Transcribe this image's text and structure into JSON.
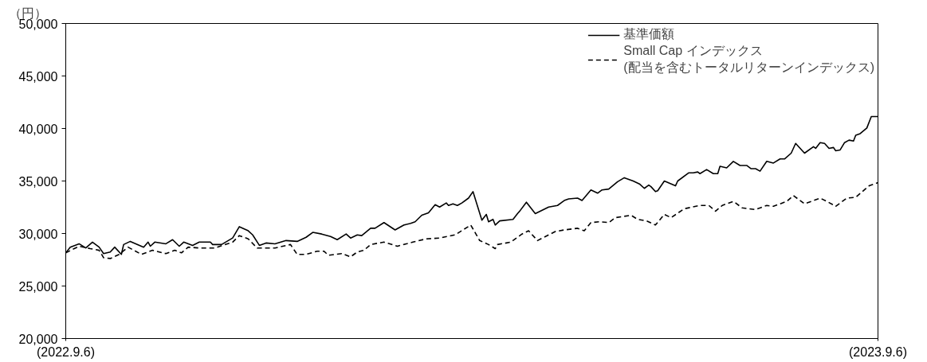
{
  "chart_data": {
    "type": "line",
    "ylabel": "（円）",
    "xlim": [
      "2022-09-06",
      "2023-09-06"
    ],
    "xticks": [
      {
        "value": "2022-09-06",
        "label": "(2022.9.6)"
      },
      {
        "value": "2023-09-06",
        "label": "(2023.9.6)"
      }
    ],
    "ylim": [
      20000,
      50000
    ],
    "yticks": [
      {
        "value": 20000,
        "label": "20,000"
      },
      {
        "value": 25000,
        "label": "25,000"
      },
      {
        "value": 30000,
        "label": "30,000"
      },
      {
        "value": 35000,
        "label": "35,000"
      },
      {
        "value": 40000,
        "label": "40,000"
      },
      {
        "value": 45000,
        "label": "45,000"
      },
      {
        "value": 50000,
        "label": "50,000"
      }
    ],
    "grid": false,
    "legend": "top right",
    "marker": "none",
    "series": [
      {
        "name": "基準価額",
        "color": "#000000",
        "line_style": "solid",
        "x": [
          "2022-09-06",
          "2022-09-08",
          "2022-09-12",
          "2022-09-15",
          "2022-09-18",
          "2022-09-21",
          "2022-09-23",
          "2022-09-26",
          "2022-09-28",
          "2022-10-01",
          "2022-10-02",
          "2022-10-05",
          "2022-10-11",
          "2022-10-13",
          "2022-10-14",
          "2022-10-16",
          "2022-10-21",
          "2022-10-24",
          "2022-10-27",
          "2022-10-29",
          "2022-11-02",
          "2022-11-05",
          "2022-11-10",
          "2022-11-11",
          "2022-11-15",
          "2022-11-20",
          "2022-11-23",
          "2022-11-27",
          "2022-11-29",
          "2022-12-02",
          "2022-12-05",
          "2022-12-09",
          "2022-12-14",
          "2022-12-19",
          "2022-12-23",
          "2022-12-26",
          "2022-12-30",
          "2023-01-03",
          "2023-01-06",
          "2023-01-10",
          "2023-01-12",
          "2023-01-15",
          "2023-01-17",
          "2023-01-21",
          "2023-01-23",
          "2023-01-27",
          "2023-02-01",
          "2023-02-05",
          "2023-02-08",
          "2023-02-10",
          "2023-02-13",
          "2023-02-16",
          "2023-02-19",
          "2023-02-21",
          "2023-02-24",
          "2023-02-25",
          "2023-02-27",
          "2023-03-01",
          "2023-03-03",
          "2023-03-06",
          "2023-03-08",
          "2023-03-12",
          "2023-03-14",
          "2023-03-15",
          "2023-03-17",
          "2023-03-18",
          "2023-03-20",
          "2023-03-26",
          "2023-03-28",
          "2023-03-29",
          "2023-04-01",
          "2023-04-05",
          "2023-04-11",
          "2023-04-15",
          "2023-04-18",
          "2023-04-20",
          "2023-04-24",
          "2023-04-26",
          "2023-04-30",
          "2023-05-03",
          "2023-05-05",
          "2023-05-08",
          "2023-05-12",
          "2023-05-15",
          "2023-05-19",
          "2023-05-22",
          "2023-05-24",
          "2023-05-26",
          "2023-05-27",
          "2023-05-29",
          "2023-05-30",
          "2023-06-02",
          "2023-06-07",
          "2023-06-08",
          "2023-06-13",
          "2023-06-15",
          "2023-06-17",
          "2023-06-18",
          "2023-06-21",
          "2023-06-24",
          "2023-06-26",
          "2023-06-27",
          "2023-06-30",
          "2023-07-03",
          "2023-07-06",
          "2023-07-09",
          "2023-07-11",
          "2023-07-13",
          "2023-07-15",
          "2023-07-18",
          "2023-07-21",
          "2023-07-24",
          "2023-07-26",
          "2023-07-29",
          "2023-07-31",
          "2023-08-04",
          "2023-08-08",
          "2023-08-09",
          "2023-08-11",
          "2023-08-13",
          "2023-08-15",
          "2023-08-17",
          "2023-08-18",
          "2023-08-20",
          "2023-08-22",
          "2023-08-24",
          "2023-08-26",
          "2023-08-27",
          "2023-08-29",
          "2023-09-01",
          "2023-09-03",
          "2023-09-06"
        ],
        "values": [
          28160,
          28700,
          29020,
          28630,
          29180,
          28700,
          28090,
          28240,
          28700,
          28010,
          28950,
          29250,
          28700,
          29180,
          28790,
          29180,
          29020,
          29410,
          28790,
          29180,
          28870,
          29180,
          29180,
          28950,
          28950,
          29570,
          30650,
          30260,
          29870,
          28870,
          29100,
          29020,
          29330,
          29250,
          29640,
          30110,
          29950,
          29720,
          29410,
          29950,
          29570,
          29870,
          29800,
          30500,
          30500,
          31040,
          30340,
          30810,
          30960,
          31120,
          31740,
          31970,
          32750,
          32520,
          32910,
          32670,
          32830,
          32670,
          32910,
          33370,
          33990,
          31270,
          31820,
          31120,
          31350,
          30810,
          31200,
          31350,
          31900,
          32130,
          32980,
          31900,
          32520,
          32670,
          33140,
          33300,
          33370,
          33140,
          34150,
          33840,
          34150,
          34230,
          34930,
          35310,
          35000,
          34690,
          34300,
          34610,
          34460,
          33990,
          34070,
          35000,
          34540,
          35000,
          35780,
          35780,
          35860,
          35700,
          36090,
          35700,
          35700,
          36400,
          36250,
          36870,
          36480,
          36480,
          36170,
          36170,
          35940,
          36870,
          36710,
          37100,
          37100,
          37650,
          38580,
          37650,
          38270,
          38110,
          38660,
          38580,
          38110,
          38190,
          37880,
          37960,
          38660,
          38890,
          38810,
          39360,
          39510,
          40050,
          41140,
          41140
        ]
      },
      {
        "name": "Small Cap インデックス\n(配当を含むトータルリターンインデックス)",
        "color": "#000000",
        "line_style": "dashed",
        "x": [
          "2022-09-06",
          "2022-09-12",
          "2022-09-17",
          "2022-09-21",
          "2022-09-23",
          "2022-09-26",
          "2022-09-30",
          "2022-10-04",
          "2022-10-10",
          "2022-10-15",
          "2022-10-21",
          "2022-10-25",
          "2022-10-28",
          "2022-10-31",
          "2022-11-05",
          "2022-11-12",
          "2022-11-20",
          "2022-11-23",
          "2022-11-27",
          "2022-12-01",
          "2022-12-09",
          "2022-12-16",
          "2022-12-19",
          "2022-12-23",
          "2022-12-28",
          "2022-12-31",
          "2023-01-02",
          "2023-01-08",
          "2023-01-12",
          "2023-01-15",
          "2023-01-18",
          "2023-01-21",
          "2023-01-27",
          "2023-02-02",
          "2023-02-09",
          "2023-02-15",
          "2023-02-21",
          "2023-02-28",
          "2023-03-07",
          "2023-03-11",
          "2023-03-15",
          "2023-03-18",
          "2023-03-19",
          "2023-03-25",
          "2023-03-30",
          "2023-04-02",
          "2023-04-06",
          "2023-04-11",
          "2023-04-14",
          "2023-04-18",
          "2023-04-24",
          "2023-04-27",
          "2023-04-30",
          "2023-05-04",
          "2023-05-08",
          "2023-05-11",
          "2023-05-18",
          "2023-05-21",
          "2023-05-25",
          "2023-05-29",
          "2023-06-02",
          "2023-06-05",
          "2023-06-11",
          "2023-06-18",
          "2023-06-22",
          "2023-06-25",
          "2023-06-28",
          "2023-07-03",
          "2023-07-07",
          "2023-07-13",
          "2023-07-18",
          "2023-07-21",
          "2023-07-27",
          "2023-07-30",
          "2023-08-04",
          "2023-08-11",
          "2023-08-14",
          "2023-08-18",
          "2023-08-23",
          "2023-08-27",
          "2023-09-02",
          "2023-09-06"
        ],
        "values": [
          28160,
          28790,
          28560,
          28400,
          27700,
          27620,
          28010,
          28700,
          28010,
          28400,
          28090,
          28400,
          28160,
          28700,
          28620,
          28620,
          29180,
          29800,
          29490,
          28620,
          28620,
          28950,
          28010,
          28010,
          28320,
          28320,
          27930,
          28090,
          27780,
          28240,
          28400,
          28950,
          29180,
          28790,
          29180,
          29490,
          29570,
          29870,
          30810,
          29330,
          28950,
          28560,
          28950,
          29180,
          29950,
          30260,
          29330,
          29870,
          30190,
          30340,
          30500,
          30260,
          31040,
          31120,
          31040,
          31510,
          31740,
          31350,
          31200,
          30810,
          31820,
          31510,
          32360,
          32670,
          32670,
          32130,
          32670,
          33060,
          32440,
          32280,
          32670,
          32590,
          33060,
          33610,
          32830,
          33370,
          33060,
          32590,
          33370,
          33450,
          34540,
          34850
        ]
      }
    ]
  }
}
